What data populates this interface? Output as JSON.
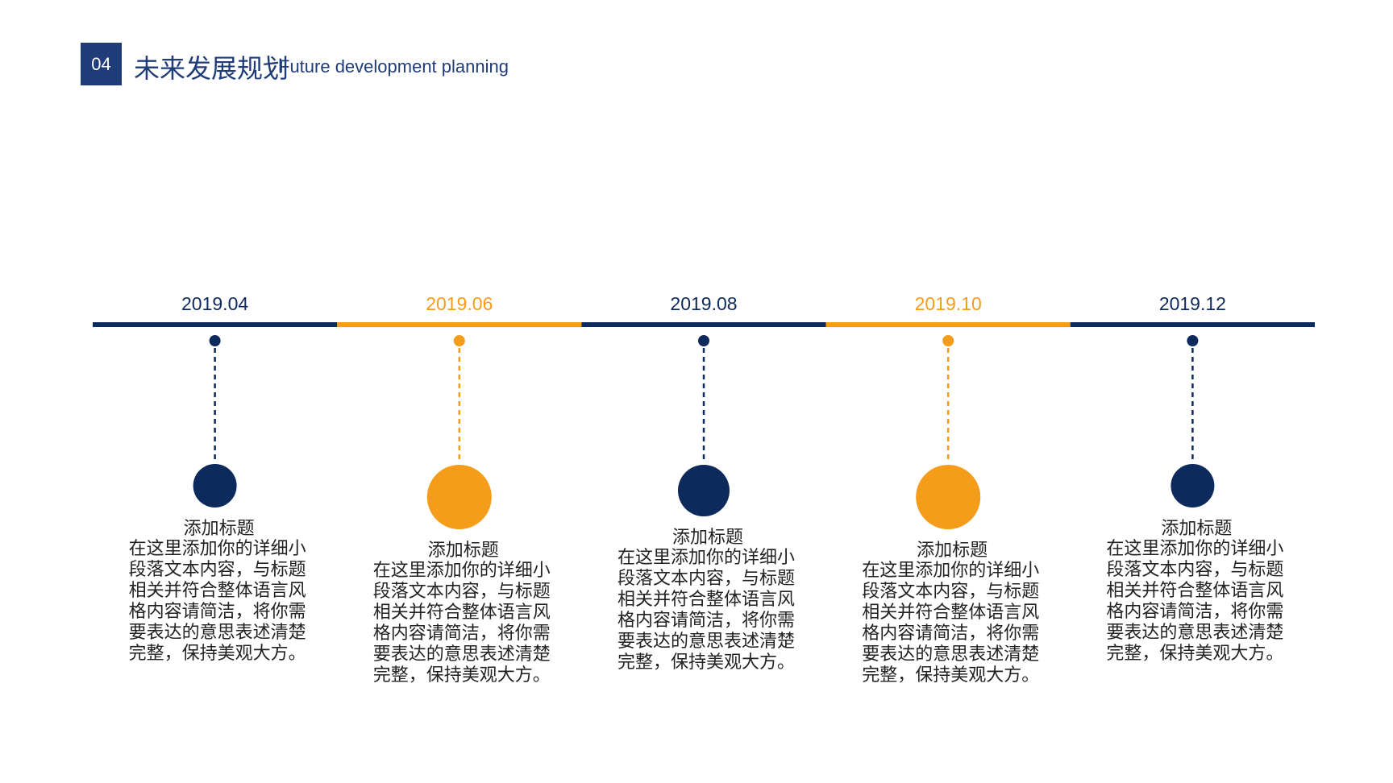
{
  "header": {
    "number": "04",
    "title": "未来发展规划",
    "subtitle": "Future development planning"
  },
  "timeline": [
    {
      "date": "2019.04",
      "color": "#0d2a5c",
      "heading": "添加标题",
      "body": "在这里添加你的详细小段落文本内容，与标题相关并符合整体语言风格内容请简洁，将你需要表达的意思表述清楚完整，保持美观大方。"
    },
    {
      "date": "2019.06",
      "color": "#f59c1a",
      "heading": "添加标题",
      "body": "在这里添加你的详细小段落文本内容，与标题相关并符合整体语言风格内容请简洁，将你需要表达的意思表述清楚完整，保持美观大方。"
    },
    {
      "date": "2019.08",
      "color": "#0d2a5c",
      "heading": "添加标题",
      "body": "在这里添加你的详细小段落文本内容，与标题相关并符合整体语言风格内容请简洁，将你需要表达的意思表述清楚完整，保持美观大方。"
    },
    {
      "date": "2019.10",
      "color": "#f59c1a",
      "heading": "添加标题",
      "body": "在这里添加你的详细小段落文本内容，与标题相关并符合整体语言风格内容请简洁，将你需要表达的意思表述清楚完整，保持美观大方。"
    },
    {
      "date": "2019.12",
      "color": "#0d2a5c",
      "heading": "添加标题",
      "body": "在这里添加你的详细小段落文本内容，与标题相关并符合整体语言风格内容请简洁，将你需要表达的意思表述清楚完整，保持美观大方。"
    }
  ]
}
